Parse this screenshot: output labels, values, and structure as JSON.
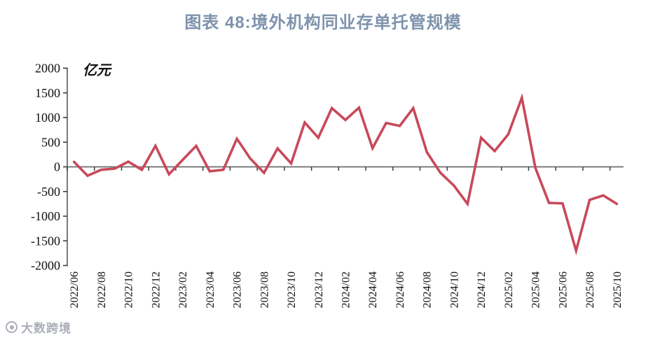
{
  "page": {
    "title": "图表 48:境外机构同业存单托管规模"
  },
  "watermark": {
    "text": "大数跨境",
    "icon": "circle-logo-icon"
  },
  "colors": {
    "title": "#7E93AC",
    "line": "#C8495A",
    "axis": "#6B6B6B",
    "tick": "#3D3D3D",
    "tick_label": "#111111",
    "watermark": "#A7ABB5"
  },
  "chart_data": {
    "type": "line",
    "title": "图表 48:境外机构同业存单托管规模",
    "unit_label": "亿元",
    "xlabel": "",
    "ylabel": "亿元",
    "ylim": [
      -2000,
      2000
    ],
    "ytick_step": 500,
    "xtick_every": 2,
    "grid": false,
    "legend": false,
    "x": [
      "2022/06",
      "2022/07",
      "2022/08",
      "2022/09",
      "2022/10",
      "2022/11",
      "2022/12",
      "2023/01",
      "2023/02",
      "2023/03",
      "2023/04",
      "2023/05",
      "2023/06",
      "2023/07",
      "2023/08",
      "2023/09",
      "2023/10",
      "2023/11",
      "2023/12",
      "2024/01",
      "2024/02",
      "2024/03",
      "2024/04",
      "2024/05",
      "2024/06",
      "2024/07",
      "2024/08",
      "2024/09",
      "2024/10",
      "2024/11",
      "2024/12",
      "2025/01",
      "2025/02",
      "2025/03",
      "2025/04",
      "2025/05",
      "2025/06",
      "2025/07",
      "2025/08",
      "2025/09",
      "2025/10"
    ],
    "values": [
      100,
      -180,
      -60,
      -35,
      105,
      -60,
      425,
      -150,
      140,
      425,
      -90,
      -60,
      570,
      165,
      -120,
      375,
      70,
      900,
      590,
      1190,
      950,
      1200,
      380,
      890,
      830,
      1190,
      300,
      -120,
      -380,
      -750,
      590,
      320,
      660,
      1400,
      -20,
      -730,
      -740,
      -1700,
      -670,
      -580,
      -750
    ]
  }
}
